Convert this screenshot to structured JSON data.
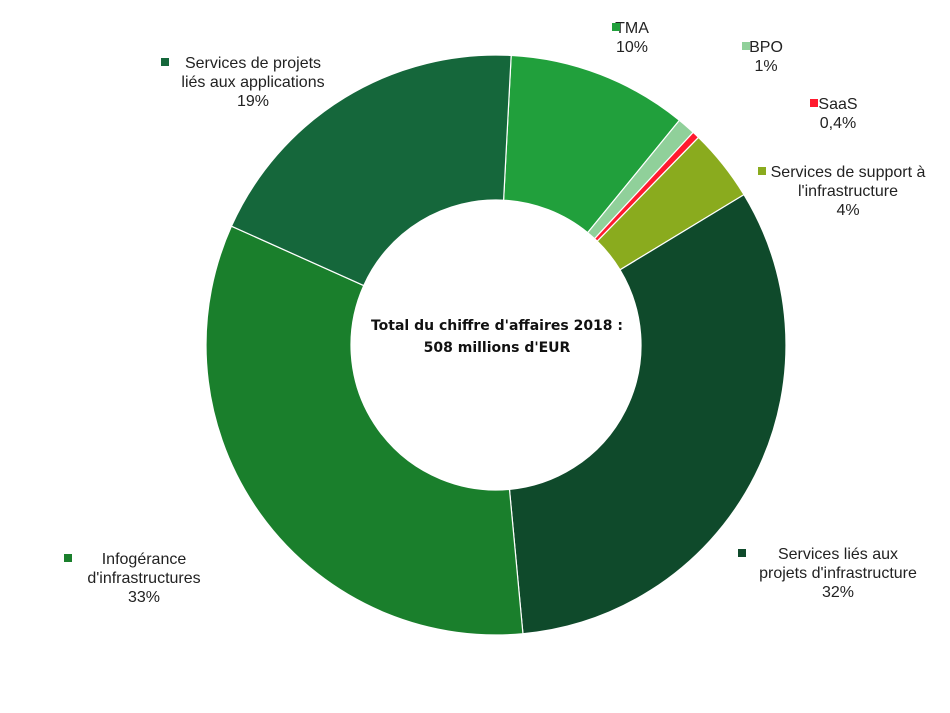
{
  "chart_data": {
    "type": "pie",
    "donut": true,
    "center_text": [
      "Total du chiffre d'affaires 2018 :",
      "508 millions d'EUR"
    ],
    "slices": [
      {
        "label": [
          "TMA"
        ],
        "value": 10,
        "value_label": "10%",
        "color": "#21a03c"
      },
      {
        "label": [
          "BPO"
        ],
        "value": 1,
        "value_label": "1%",
        "color": "#90d09a"
      },
      {
        "label": [
          "SaaS"
        ],
        "value": 0.4,
        "value_label": "0,4%",
        "color": "#ff1a2e"
      },
      {
        "label": [
          "Services de support à",
          "l'infrastructure"
        ],
        "value": 4,
        "value_label": "4%",
        "color": "#8aab1e"
      },
      {
        "label": [
          "Services liés aux",
          "projets d'infrastructure"
        ],
        "value": 32,
        "value_label": "32%",
        "color": "#0f4a2b"
      },
      {
        "label": [
          "Infogérance",
          "d'infrastructures"
        ],
        "value": 33,
        "value_label": "33%",
        "color": "#1a7f2c"
      },
      {
        "label": [
          "Services de projets",
          "liés aux applications"
        ],
        "value": 19,
        "value_label": "19%",
        "color": "#15673b"
      }
    ],
    "legend": "callout labels around the ring"
  }
}
